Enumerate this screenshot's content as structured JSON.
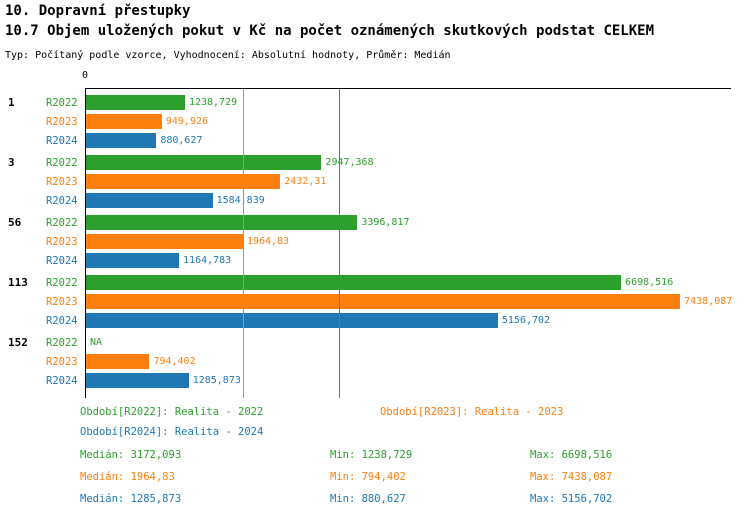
{
  "header": {
    "title": "10. Dopravní přestupky",
    "subtitle": "10.7 Objem uložených pokut v Kč na počet oznámených skutkových podstat CELKEM",
    "meta": "Typ: Počítaný podle vzorce, Vyhodnocení: Absolutní hodnoty, Průměr: Medián"
  },
  "chart_data": {
    "type": "bar",
    "orientation": "horizontal",
    "x_axis": {
      "zero_label": "0",
      "xlim": [
        0,
        8075
      ]
    },
    "categories": [
      "1",
      "3",
      "56",
      "113",
      "152"
    ],
    "series": [
      {
        "name": "R2022",
        "legend": "Realita - 2022",
        "color": "#2CA02C",
        "values": [
          1238.729,
          2947.368,
          3396.817,
          6698.516,
          null
        ],
        "value_labels": [
          "1238,729",
          "2947,368",
          "3396,817",
          "6698,516",
          "NA"
        ]
      },
      {
        "name": "R2023",
        "legend": "Realita - 2023",
        "color": "#FF7F0E",
        "values": [
          949.926,
          2432.31,
          1964.83,
          7438.087,
          794.402
        ],
        "value_labels": [
          "949,926",
          "2432,31",
          "1964,83",
          "7438,087",
          "794,402"
        ]
      },
      {
        "name": "R2024",
        "legend": "Realita - 2024",
        "color": "#1F77B4",
        "values": [
          880.627,
          1584.839,
          1164.783,
          5156.702,
          1285.873
        ],
        "value_labels": [
          "880,627",
          "1584,839",
          "1164,783",
          "5156,702",
          "1285,873"
        ]
      }
    ],
    "median_lines": [
      {
        "series": "R2023",
        "value": 1964.83,
        "color": "#FF7F0E"
      },
      {
        "series": "R2022",
        "value": 3172.093,
        "color": "#2CA02C"
      }
    ]
  },
  "legend": {
    "items": [
      {
        "label": "Období[R2022]: Realita - 2022",
        "color": "#2CA02C"
      },
      {
        "label": "Období[R2023]: Realita - 2023",
        "color": "#FF7F0E"
      },
      {
        "label": "Období[R2024]: Realita - 2024",
        "color": "#1F77B4"
      }
    ]
  },
  "stats": {
    "rows": [
      {
        "median": "Medián: 3172,093",
        "min": "Min: 1238,729",
        "max": "Max: 6698,516",
        "color": "#2CA02C"
      },
      {
        "median": "Medián: 1964,83",
        "min": "Min: 794,402",
        "max": "Max: 7438,087",
        "color": "#FF7F0E"
      },
      {
        "median": "Medián: 1285,873",
        "min": "Min: 880,627",
        "max": "Max: 5156,702",
        "color": "#1F77B4"
      }
    ]
  }
}
